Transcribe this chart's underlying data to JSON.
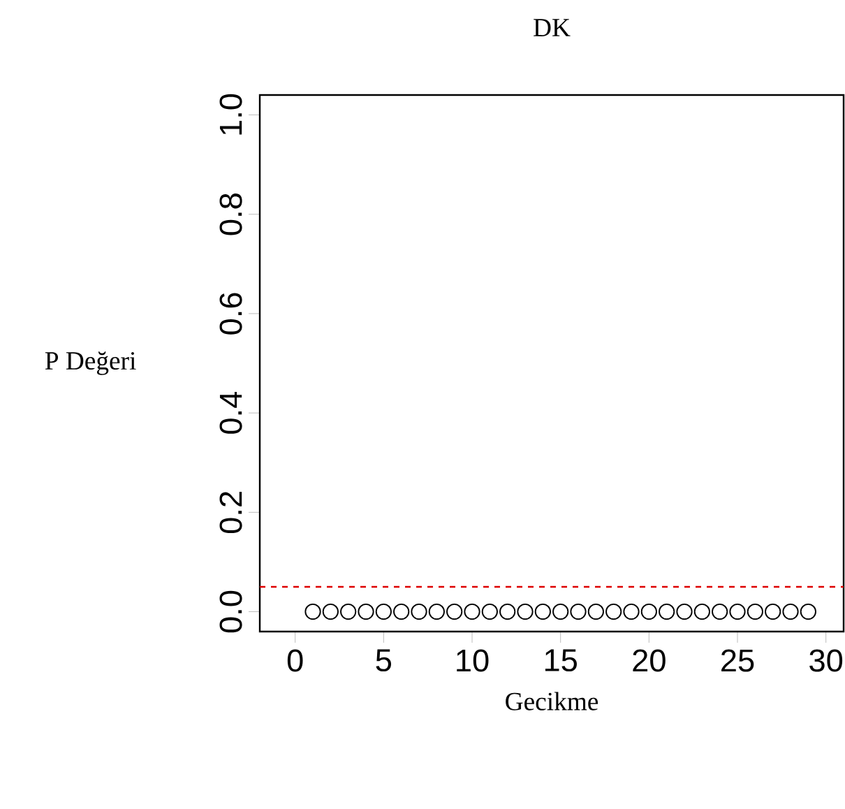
{
  "chart_data": {
    "type": "scatter",
    "title": "DK",
    "xlabel": "Gecikme",
    "ylabel": "P Değeri",
    "x": [
      1,
      2,
      3,
      4,
      5,
      6,
      7,
      8,
      9,
      10,
      11,
      12,
      13,
      14,
      15,
      16,
      17,
      18,
      19,
      20,
      21,
      22,
      23,
      24,
      25,
      26,
      27,
      28,
      29
    ],
    "series": [
      {
        "color": "#000000",
        "values": [
          0,
          0,
          0,
          0,
          0,
          0,
          0,
          0,
          0,
          0,
          0,
          0,
          0,
          0,
          0,
          0,
          0,
          0,
          0,
          0,
          0,
          0,
          0,
          0,
          0,
          0,
          0,
          0,
          0
        ]
      }
    ],
    "marker": "circle",
    "xlim": [
      -2,
      31
    ],
    "ylim": [
      -0.04,
      1.04
    ],
    "xticks": [
      0,
      5,
      10,
      15,
      20,
      25,
      30
    ],
    "yticks": [
      {
        "value": 0,
        "label": "0.0"
      },
      {
        "value": 0.2,
        "label": "0.2"
      },
      {
        "value": 0.4,
        "label": "0.4"
      },
      {
        "value": 0.6,
        "label": "0.6"
      },
      {
        "value": 0.8,
        "label": "0.8"
      },
      {
        "value": 1,
        "label": "1.0"
      }
    ],
    "ref_lines": [
      {
        "axis": "y",
        "value": 0.05,
        "color": "#dd0000",
        "line_style": "dashed"
      }
    ],
    "grid": false
  }
}
